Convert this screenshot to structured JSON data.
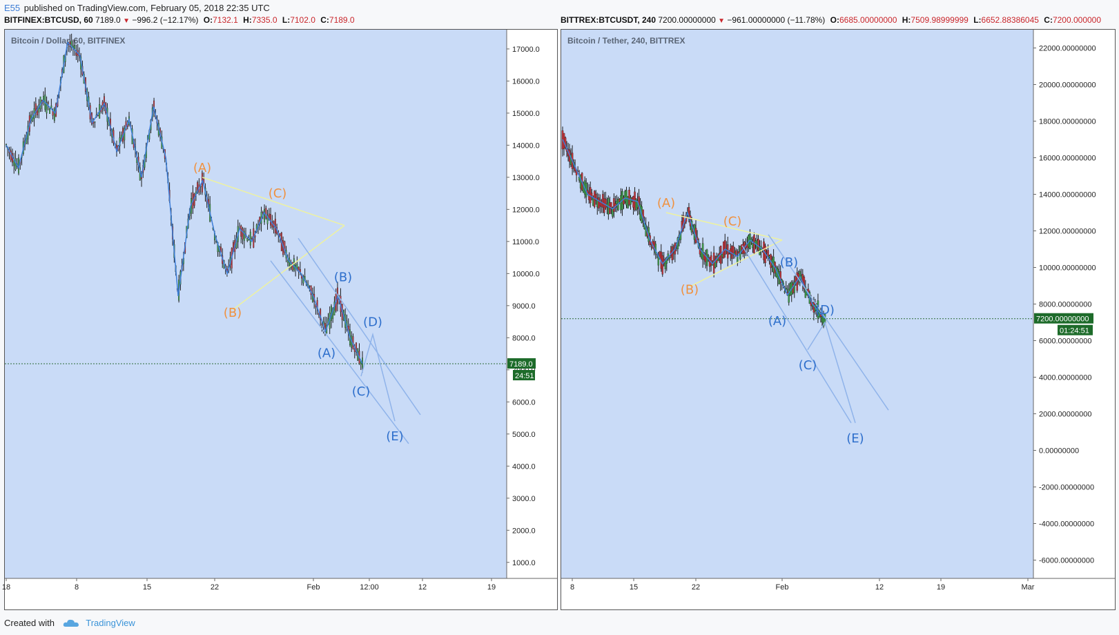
{
  "header": {
    "user": "E55",
    "published": "published on TradingView.com, February 05, 2018 22:35 UTC"
  },
  "left": {
    "symbol": "BITFINEX:BTCUSD, 60",
    "price": "7189.0",
    "change": "−996.2 (−12.17%)",
    "o_label": "O:",
    "o": "7132.1",
    "h_label": "H:",
    "h": "7335.0",
    "l_label": "L:",
    "l": "7102.0",
    "c_label": "C:",
    "c": "7189.0",
    "title": "Bitcoin / Dollar, 60, BITFINEX",
    "price_tag": "7189.0",
    "timer_tag": "24:51"
  },
  "right": {
    "symbol": "BITTREX:BTCUSDT, 240",
    "price": "7200.00000000",
    "change": "−961.00000000 (−11.78%)",
    "o_label": "O:",
    "o": "6685.00000000",
    "h_label": "H:",
    "h": "7509.98999999",
    "l_label": "L:",
    "l": "6652.88386045",
    "c_label": "C:",
    "c": "7200.000000",
    "title": "Bitcoin / Tether, 240, BITTREX",
    "price_tag": "7200.00000000",
    "timer_tag": "01:24:51"
  },
  "footer": {
    "created": "Created with",
    "brand": "TradingView"
  },
  "colors": {
    "pane_bg": "#c9dbf7",
    "orange": "#f0913f",
    "blue_label": "#2e6fcc",
    "blue_line": "#8fb3ea",
    "yellow_line": "#eef2a0",
    "candle_up": "#3f9b4c",
    "candle_down": "#c0333a",
    "ma_line": "#3d7ed9",
    "tag_dark": "#1d6b2a"
  },
  "chart_data": [
    {
      "type": "line",
      "title": "Bitcoin / Dollar, 60, BITFINEX",
      "x_ticks": [
        "18",
        "8",
        "15",
        "22",
        "Feb",
        "12:00",
        "12",
        "19"
      ],
      "y_ticks": [
        "17000.0",
        "16000.0",
        "15000.0",
        "14000.0",
        "13000.0",
        "12000.0",
        "11000.0",
        "10000.0",
        "9000.0",
        "8000.0",
        "7000.0",
        "6000.0",
        "5000.0",
        "4000.0",
        "3000.0",
        "2000.0",
        "1000.0"
      ],
      "ylim": [
        500,
        17600
      ],
      "last_price": 7189.0,
      "series": [
        {
          "values": [
            14000,
            13300,
            14800,
            15400,
            15000,
            17200,
            16800,
            14700,
            15300,
            13800,
            14800,
            13000,
            15200,
            13600,
            9300,
            12100,
            12900,
            11200,
            10000,
            11400,
            11000,
            11900,
            11400,
            10400,
            10000,
            9300,
            8200,
            9300,
            8000,
            7189
          ]
        }
      ],
      "wave_labels_orange": [
        {
          "label": "(A)",
          "value": 13000
        },
        {
          "label": "(B)",
          "value": 9300
        },
        {
          "label": "(C)",
          "value": 12200
        }
      ],
      "wave_labels_blue": [
        {
          "label": "(A)",
          "value": 8000
        },
        {
          "label": "(B)",
          "value": 9500
        },
        {
          "label": "(C)",
          "value": 6800
        },
        {
          "label": "(D)",
          "value": 8100
        },
        {
          "label": "(E)",
          "value": 5400
        }
      ]
    },
    {
      "type": "line",
      "title": "Bitcoin / Tether, 240, BITTREX",
      "x_ticks": [
        "8",
        "15",
        "22",
        "Feb",
        "12",
        "19",
        "Mar"
      ],
      "y_ticks": [
        "22000.00000000",
        "20000.00000000",
        "18000.00000000",
        "16000.00000000",
        "14000.00000000",
        "12000.00000000",
        "10000.00000000",
        "8000.00000000",
        "6000.00000000",
        "4000.00000000",
        "2000.00000000",
        "0.00000000",
        "-2000.00000000",
        "-4000.00000000",
        "-6000.00000000"
      ],
      "ylim": [
        -7000,
        23000
      ],
      "last_price": 7200,
      "series": [
        {
          "values": [
            17000,
            15500,
            14000,
            13600,
            13200,
            13800,
            13600,
            11500,
            10200,
            11000,
            13000,
            11000,
            10200,
            11000,
            10600,
            11500,
            11000,
            10000,
            8500,
            9500,
            8000,
            7200
          ]
        }
      ],
      "wave_labels_orange": [
        {
          "label": "(A)",
          "value": 13000
        },
        {
          "label": "(B)",
          "value": 9700
        },
        {
          "label": "(C)",
          "value": 12000
        }
      ],
      "wave_labels_blue": [
        {
          "label": "(A)",
          "value": 7900
        },
        {
          "label": "(B)",
          "value": 9600
        },
        {
          "label": "(C)",
          "value": 5500
        },
        {
          "label": "(D)",
          "value": 7000
        },
        {
          "label": "(E)",
          "value": 1500
        }
      ]
    }
  ]
}
